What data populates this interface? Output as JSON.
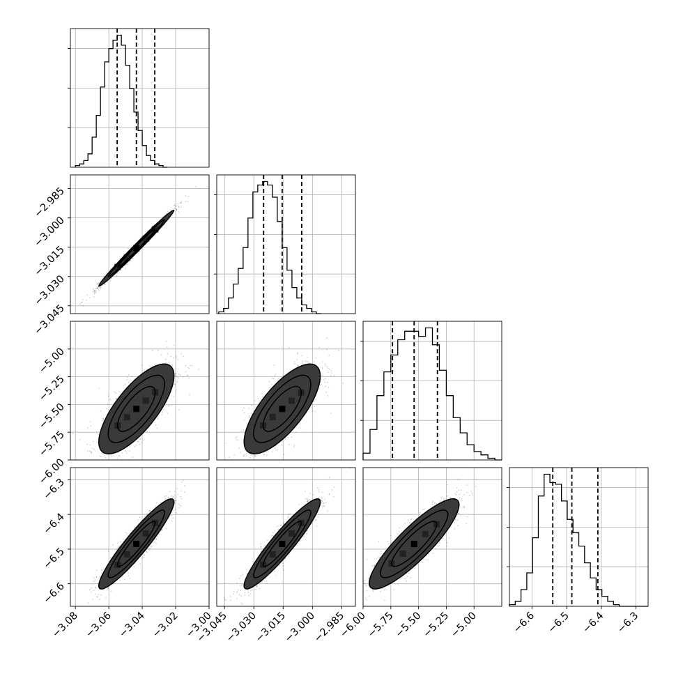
{
  "chart_data": {
    "type": "corner",
    "n_params": 4,
    "title": "",
    "axis_labels": [
      "",
      "",
      "",
      ""
    ],
    "params": [
      {
        "range": [
          -3.083,
          -3.0
        ],
        "ticks": [
          -3.08,
          -3.06,
          -3.04,
          -3.02,
          -3.0
        ],
        "tick_labels": [
          "−3.08",
          "−3.06",
          "−3.04",
          "−3.02",
          "−3.00"
        ],
        "quantiles": [
          -3.055,
          -3.0435,
          -3.0325
        ],
        "hist": {
          "start": -3.08,
          "step": 0.0025,
          "values": [
            1,
            2,
            4,
            8,
            18,
            31,
            48,
            63,
            71,
            76,
            79,
            73,
            61,
            47,
            33,
            22,
            13,
            7,
            4,
            2,
            1,
            0
          ]
        }
      },
      {
        "range": [
          -3.049,
          -2.978
        ],
        "ticks": [
          -3.045,
          -3.03,
          -3.015,
          -3.0,
          -2.985
        ],
        "tick_labels": [
          "−3.045",
          "−3.030",
          "−3.015",
          "−3.000",
          "−2.985"
        ],
        "quantiles": [
          -3.025,
          -3.0155,
          -3.0055
        ],
        "hist": {
          "start": -3.048,
          "step": 0.0025,
          "values": [
            1,
            3,
            9,
            17,
            26,
            38,
            55,
            70,
            74,
            76,
            74,
            67,
            53,
            38,
            25,
            15,
            9,
            5,
            3,
            1,
            0
          ]
        }
      },
      {
        "range": [
          -6.0,
          -4.75
        ],
        "ticks": [
          -6.0,
          -5.75,
          -5.5,
          -5.25,
          -5.0
        ],
        "tick_labels": [
          "−6.00",
          "−5.75",
          "−5.50",
          "−5.25",
          "−5.00"
        ],
        "quantiles": [
          -5.735,
          -5.54,
          -5.33
        ],
        "hist": {
          "start": -6.0,
          "step": 0.0625,
          "values": [
            4,
            18,
            38,
            52,
            62,
            71,
            76,
            76,
            73,
            78,
            68,
            53,
            38,
            25,
            16,
            9,
            5,
            3,
            1,
            0
          ]
        }
      },
      {
        "range": [
          -6.665,
          -6.265
        ],
        "ticks": [
          -6.6,
          -6.5,
          -6.4,
          -6.3
        ],
        "tick_labels": [
          "−6.6",
          "−6.5",
          "−6.4",
          "−6.3"
        ],
        "quantiles": [
          -6.54,
          -6.485,
          -6.41
        ],
        "hist": {
          "start": -6.665,
          "step": 0.01667,
          "values": [
            1,
            3,
            10,
            20,
            41,
            66,
            79,
            74,
            73,
            63,
            52,
            44,
            36,
            26,
            17,
            10,
            6,
            3,
            1,
            0,
            0,
            0,
            0,
            0
          ]
        }
      }
    ],
    "correlations": {
      "1-0": 0.992,
      "2-0": 0.74,
      "2-1": 0.73,
      "3-0": 0.93,
      "3-1": 0.93,
      "3-2": 0.87
    },
    "contour_levels": [
      0.5,
      1.0,
      1.5,
      2.0
    ],
    "grid": true
  }
}
